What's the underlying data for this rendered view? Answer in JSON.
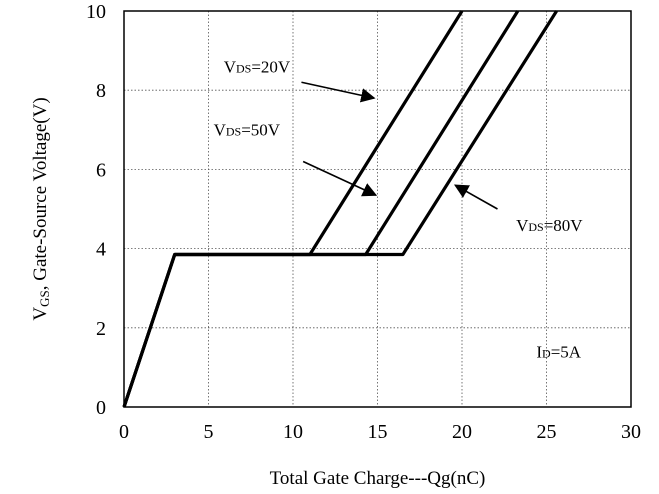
{
  "chart_data": {
    "type": "line",
    "xlabel": "Total Gate Charge---Qg(nC)",
    "ylabel": {
      "main": "V",
      "sub": "GS",
      "rest": ", Gate-Source Voltage(V)"
    },
    "xlim": [
      0,
      30
    ],
    "ylim": [
      0,
      10
    ],
    "xticks": [
      "0",
      "5",
      "10",
      "15",
      "20",
      "25",
      "30"
    ],
    "yticks": [
      "0",
      "2",
      "4",
      "6",
      "8",
      "10"
    ],
    "grid": "dotted",
    "series": [
      {
        "name": "VDS=20V",
        "x": [
          0,
          3,
          11,
          20
        ],
        "y": [
          0,
          3.85,
          3.85,
          10
        ]
      },
      {
        "name": "VDS=50V",
        "x": [
          0,
          3,
          14.3,
          23.3
        ],
        "y": [
          0,
          3.85,
          3.85,
          10
        ]
      },
      {
        "name": "VDS=80V",
        "x": [
          0,
          3,
          16.5,
          25.6
        ],
        "y": [
          0,
          3.85,
          3.85,
          10
        ]
      }
    ],
    "annotations": [
      {
        "main": "V",
        "sub": "DS",
        "rest": "=20V",
        "tx": 5.9,
        "ty": 8.45,
        "ax1": 10.5,
        "ay1": 8.2,
        "ax2": 14.8,
        "ay2": 7.8
      },
      {
        "main": "V",
        "sub": "DS",
        "rest": "=50V",
        "tx": 5.3,
        "ty": 6.85,
        "ax1": 10.6,
        "ay1": 6.2,
        "ax2": 14.9,
        "ay2": 5.35
      },
      {
        "main": "V",
        "sub": "DS",
        "rest": "=80V",
        "tx": 23.2,
        "ty": 4.45,
        "ax1": 22.1,
        "ay1": 5.0,
        "ax2": 19.6,
        "ay2": 5.6
      }
    ],
    "note": {
      "main": "I",
      "sub": "D",
      "rest": "=5A",
      "x": 24.4,
      "y": 1.25
    }
  }
}
